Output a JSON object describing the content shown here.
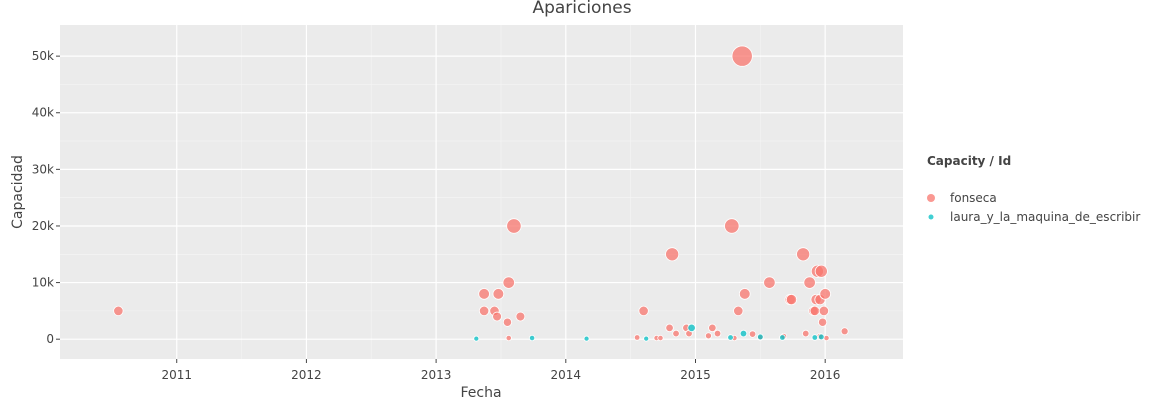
{
  "chart_data": {
    "type": "scatter",
    "title": "Apariciones",
    "xlabel": "Fecha",
    "ylabel": "Capacidad",
    "xlim": [
      2010.1,
      2016.6
    ],
    "ylim": [
      -3500,
      55500
    ],
    "x_ticks": [
      2011,
      2012,
      2013,
      2014,
      2015,
      2016
    ],
    "x_tick_labels": [
      "2011",
      "2012",
      "2013",
      "2014",
      "2015",
      "2016"
    ],
    "y_ticks": [
      0,
      10000,
      20000,
      30000,
      40000,
      50000
    ],
    "y_tick_labels": [
      "0",
      "10k",
      "20k",
      "30k",
      "40k",
      "50k"
    ],
    "grid": true,
    "legend": {
      "title": "Capacity / Id",
      "placement": "right"
    },
    "series": [
      {
        "name": "fonseca",
        "color": "#F8766D",
        "points": [
          [
            2010.55,
            5000
          ],
          [
            2013.37,
            8000
          ],
          [
            2013.37,
            5000
          ],
          [
            2013.45,
            5000
          ],
          [
            2013.47,
            4000
          ],
          [
            2013.48,
            8000
          ],
          [
            2013.55,
            3000
          ],
          [
            2013.56,
            10000
          ],
          [
            2013.6,
            20000
          ],
          [
            2013.65,
            4000
          ],
          [
            2013.56,
            200
          ],
          [
            2014.55,
            300
          ],
          [
            2014.6,
            5000
          ],
          [
            2014.7,
            200
          ],
          [
            2014.73,
            200
          ],
          [
            2014.8,
            2000
          ],
          [
            2014.82,
            15000
          ],
          [
            2014.85,
            1000
          ],
          [
            2014.93,
            2000
          ],
          [
            2014.95,
            1000
          ],
          [
            2015.1,
            600
          ],
          [
            2015.13,
            2000
          ],
          [
            2015.17,
            1000
          ],
          [
            2015.28,
            20000
          ],
          [
            2015.3,
            200
          ],
          [
            2015.33,
            5000
          ],
          [
            2015.36,
            50000
          ],
          [
            2015.38,
            8000
          ],
          [
            2015.44,
            900
          ],
          [
            2015.5,
            300
          ],
          [
            2015.57,
            10000
          ],
          [
            2015.68,
            500
          ],
          [
            2015.73,
            7000
          ],
          [
            2015.74,
            7000
          ],
          [
            2015.83,
            15000
          ],
          [
            2015.85,
            1000
          ],
          [
            2015.88,
            10000
          ],
          [
            2015.91,
            5000
          ],
          [
            2015.92,
            5000
          ],
          [
            2015.93,
            7000
          ],
          [
            2015.94,
            12000
          ],
          [
            2015.96,
            7000
          ],
          [
            2015.97,
            12000
          ],
          [
            2015.98,
            3000
          ],
          [
            2015.96,
            500
          ],
          [
            2015.99,
            5000
          ],
          [
            2016.0,
            8000
          ],
          [
            2016.01,
            200
          ],
          [
            2016.15,
            1400
          ]
        ],
        "sizes": [
          5000,
          8000,
          5000,
          5000,
          4000,
          8000,
          3000,
          10000,
          20000,
          4000,
          200,
          300,
          5000,
          200,
          200,
          2000,
          15000,
          1000,
          2000,
          1000,
          600,
          2000,
          1000,
          20000,
          200,
          5000,
          50000,
          8000,
          900,
          300,
          10000,
          500,
          7000,
          7000,
          15000,
          1000,
          10000,
          5000,
          5000,
          7000,
          12000,
          7000,
          12000,
          3000,
          500,
          5000,
          8000,
          200,
          1400
        ]
      },
      {
        "name": "laura_y_la_maquina_de_escribir",
        "color": "#00BFC4",
        "points": [
          [
            2013.31,
            100
          ],
          [
            2013.74,
            200
          ],
          [
            2014.16,
            100
          ],
          [
            2014.62,
            100
          ],
          [
            2014.97,
            2000
          ],
          [
            2015.27,
            300
          ],
          [
            2015.37,
            1000
          ],
          [
            2015.5,
            400
          ],
          [
            2015.67,
            300
          ],
          [
            2015.92,
            300
          ],
          [
            2015.97,
            400
          ]
        ],
        "sizes": [
          100,
          200,
          100,
          100,
          2000,
          300,
          1000,
          400,
          300,
          300,
          400
        ]
      }
    ]
  }
}
